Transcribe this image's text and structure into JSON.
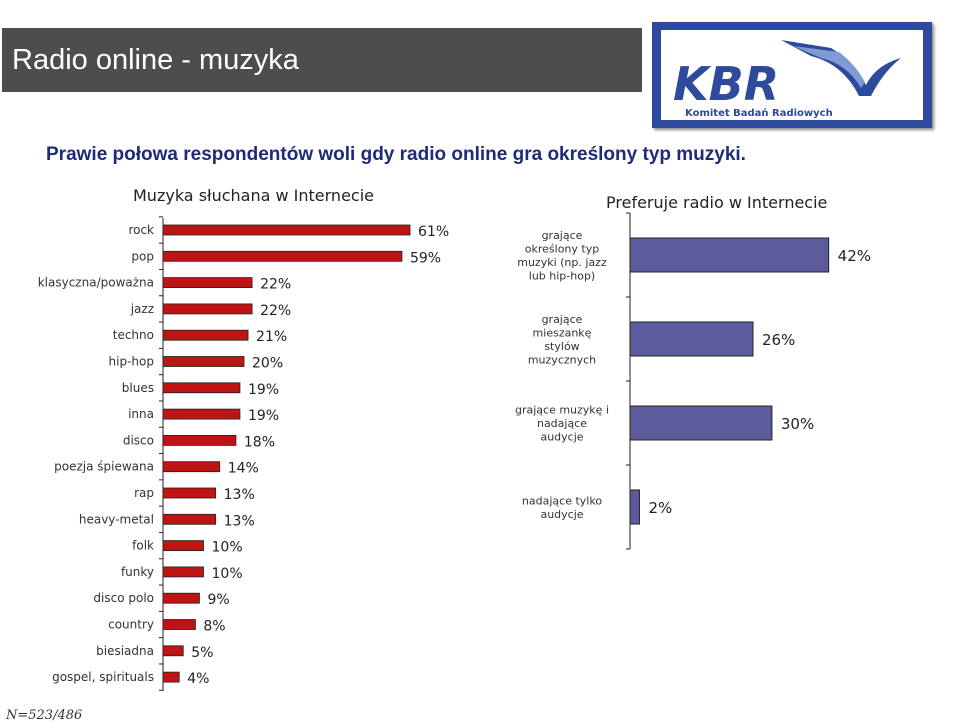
{
  "header": {
    "title": "Radio online - muzyka"
  },
  "logo": {
    "text": "KBR",
    "subtitle": "Komitet Badań Radiowych"
  },
  "headline": "Prawie połowa respondentów woli gdy radio online gra określony typ muzyki.",
  "chart_data": [
    {
      "type": "bar",
      "orientation": "horizontal",
      "title": "Muzyka słuchana w Internecie",
      "categories": [
        "rock",
        "pop",
        "klasyczna/poważna",
        "jazz",
        "techno",
        "hip-hop",
        "blues",
        "inna",
        "disco",
        "poezja śpiewana",
        "rap",
        "heavy-metal",
        "folk",
        "funky",
        "disco polo",
        "country",
        "biesiadna",
        "gospel, spirituals"
      ],
      "values": [
        61,
        59,
        22,
        22,
        21,
        20,
        19,
        19,
        18,
        14,
        13,
        13,
        10,
        10,
        9,
        8,
        5,
        4
      ],
      "unit": "%",
      "bar_color": "#bf1414"
    },
    {
      "type": "bar",
      "orientation": "horizontal",
      "title": "Preferuje radio w Internecie",
      "categories": [
        "grające określony typ muzyki (np. jazz lub hip-hop)",
        "grające mieszankę stylów muzycznych",
        "grające muzykę i nadające audycje",
        "nadające tylko audycje"
      ],
      "category_lines": [
        [
          "grające",
          "określony typ",
          "muzyki (np. jazz",
          "lub hip-hop)"
        ],
        [
          "grające",
          "mieszankę",
          "stylów",
          "muzycznych"
        ],
        [
          "grające muzykę i",
          "nadające",
          "audycje"
        ],
        [
          "nadające tylko",
          "audycje"
        ]
      ],
      "values": [
        42,
        26,
        30,
        2
      ],
      "unit": "%",
      "bar_color": "#5c5b9c"
    }
  ],
  "footnote": "N=523/486"
}
